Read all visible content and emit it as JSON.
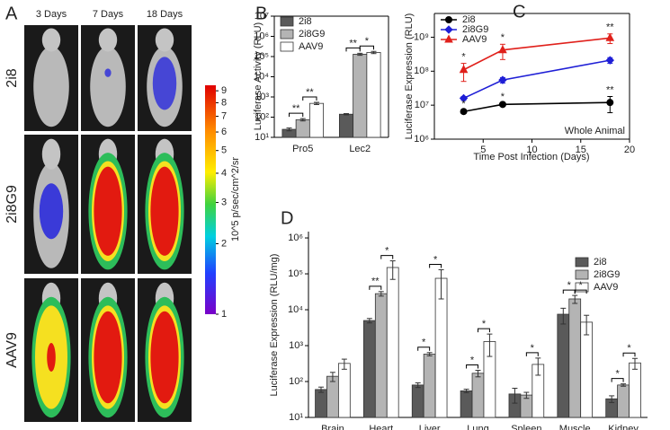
{
  "panel_a": {
    "letter": "A",
    "columns": [
      "3 Days",
      "7 Days",
      "18 Days"
    ],
    "rows": [
      "2i8",
      "2i8G9",
      "AAV9"
    ],
    "colorbar": {
      "label": "10^5 p/sec/cm^2/sr",
      "lim": [
        1,
        9.5
      ],
      "log": true,
      "ticks": [
        9,
        8,
        7,
        6,
        5,
        4,
        3,
        2,
        1
      ]
    }
  },
  "chart_data": [
    {
      "type": "bar",
      "label": "B",
      "ylabel": "Luciferase Activity (RLU)",
      "log_y": true,
      "categories": [
        "Pro5",
        "Lec2"
      ],
      "series": [
        {
          "name": "2i8",
          "color": "#5a5a5a",
          "values": [
            25,
            140
          ],
          "errors": [
            4,
            10
          ]
        },
        {
          "name": "2i8G9",
          "color": "#b4b4b4",
          "values": [
            75,
            130000
          ],
          "errors": [
            10,
            15000
          ]
        },
        {
          "name": "AAV9",
          "color": "#ffffff",
          "values": [
            480,
            160000
          ],
          "errors": [
            60,
            20000
          ]
        }
      ],
      "ylim": [
        10,
        10000000
      ],
      "yticks": [
        {
          "value": 10,
          "label": "10¹"
        },
        {
          "value": 100,
          "label": "10²"
        },
        {
          "value": 1000,
          "label": "10³"
        },
        {
          "value": 10000,
          "label": "10⁴"
        },
        {
          "value": 100000,
          "label": "10⁵"
        },
        {
          "value": 1000000,
          "label": "10⁶"
        },
        {
          "value": 10000000,
          "label": "10⁷"
        }
      ],
      "annotations": [
        "**",
        "**",
        "**",
        "*"
      ]
    },
    {
      "type": "line",
      "label": "C",
      "xlabel": "Time Post Infection (Days)",
      "ylabel": "Luciferase Expression (RLU)",
      "log_y": true,
      "note": "Whole Animal",
      "x": [
        3,
        7,
        18
      ],
      "series": [
        {
          "name": "2i8",
          "color": "#000000",
          "marker": "circle",
          "values": [
            6500000,
            10500000,
            12000000
          ],
          "errors": [
            500000,
            1000000,
            6000000
          ]
        },
        {
          "name": "2i8G9",
          "color": "#1f1fd6",
          "marker": "diamond",
          "values": [
            16000000,
            55000000,
            210000000
          ],
          "errors": [
            2000000,
            10000000,
            40000000
          ]
        },
        {
          "name": "AAV9",
          "color": "#e0201b",
          "marker": "triangle",
          "values": [
            110000000,
            420000000,
            950000000
          ],
          "errors": [
            60000000,
            200000000,
            300000000
          ]
        }
      ],
      "xlim": [
        0,
        20
      ],
      "xticks": [
        5,
        10,
        15,
        20
      ],
      "ylim": [
        1000000,
        5000000000
      ],
      "yticks": [
        {
          "value": 1000000,
          "label": "10⁶"
        },
        {
          "value": 10000000,
          "label": "10⁷"
        },
        {
          "value": 100000000,
          "label": "10⁸"
        },
        {
          "value": 1000000000,
          "label": "10⁹"
        }
      ],
      "annotations": [
        "*",
        "*",
        "**",
        "*",
        "*",
        "**"
      ]
    },
    {
      "type": "bar",
      "label": "D",
      "ylabel": "Luciferase Expression (RLU/mg)",
      "log_y": true,
      "categories": [
        "Brain",
        "Heart",
        "Liver",
        "Lung",
        "Spleen",
        "Muscle",
        "Kidney"
      ],
      "series": [
        {
          "name": "2i8",
          "color": "#5a5a5a",
          "values": [
            60,
            5000,
            80,
            55,
            45,
            7500,
            33
          ],
          "errors": [
            10,
            700,
            12,
            6,
            20,
            3500,
            7
          ]
        },
        {
          "name": "2i8G9",
          "color": "#b4b4b4",
          "values": [
            140,
            28000,
            580,
            170,
            42,
            20000,
            80
          ],
          "errors": [
            40,
            4000,
            60,
            35,
            8,
            5000,
            6
          ]
        },
        {
          "name": "AAV9",
          "color": "#ffffff",
          "values": [
            320,
            150000,
            75000,
            1300,
            300,
            4500,
            330
          ],
          "errors": [
            100,
            80000,
            55000,
            800,
            150,
            2500,
            110
          ]
        }
      ],
      "ylim": [
        10,
        1500000
      ],
      "yticks": [
        {
          "value": 10,
          "label": "10¹"
        },
        {
          "value": 100,
          "label": "10²"
        },
        {
          "value": 1000,
          "label": "10³"
        },
        {
          "value": 10000,
          "label": "10⁴"
        },
        {
          "value": 100000,
          "label": "10⁵"
        },
        {
          "value": 1000000,
          "label": "10⁶"
        }
      ],
      "annotations": [
        "**",
        "*",
        "*",
        "*",
        "*",
        "*",
        "*",
        "*",
        "*",
        "*",
        "*"
      ]
    }
  ]
}
